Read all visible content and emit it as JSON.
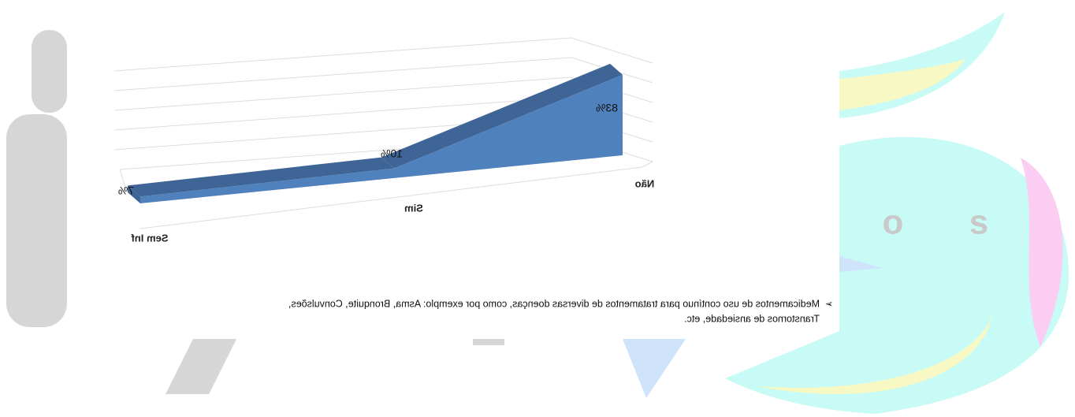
{
  "chart_data": {
    "type": "area3d",
    "categories": [
      "Sem Inf",
      "Sim",
      "Não"
    ],
    "values": [
      7,
      10,
      83
    ],
    "value_labels": [
      "7%",
      "10%",
      "83%"
    ],
    "color": "#4f81bd",
    "ylim": [
      0,
      100
    ]
  },
  "note": {
    "bullet": "➢",
    "lines": [
      "Medicamentos de uso contínuo para tratamentos de diversas doenças, como por exemplo: Asma, Bronquite, Convulsões,",
      "Transtornos de ansiedade, etc."
    ]
  },
  "background_letters": [
    "o",
    "s"
  ]
}
